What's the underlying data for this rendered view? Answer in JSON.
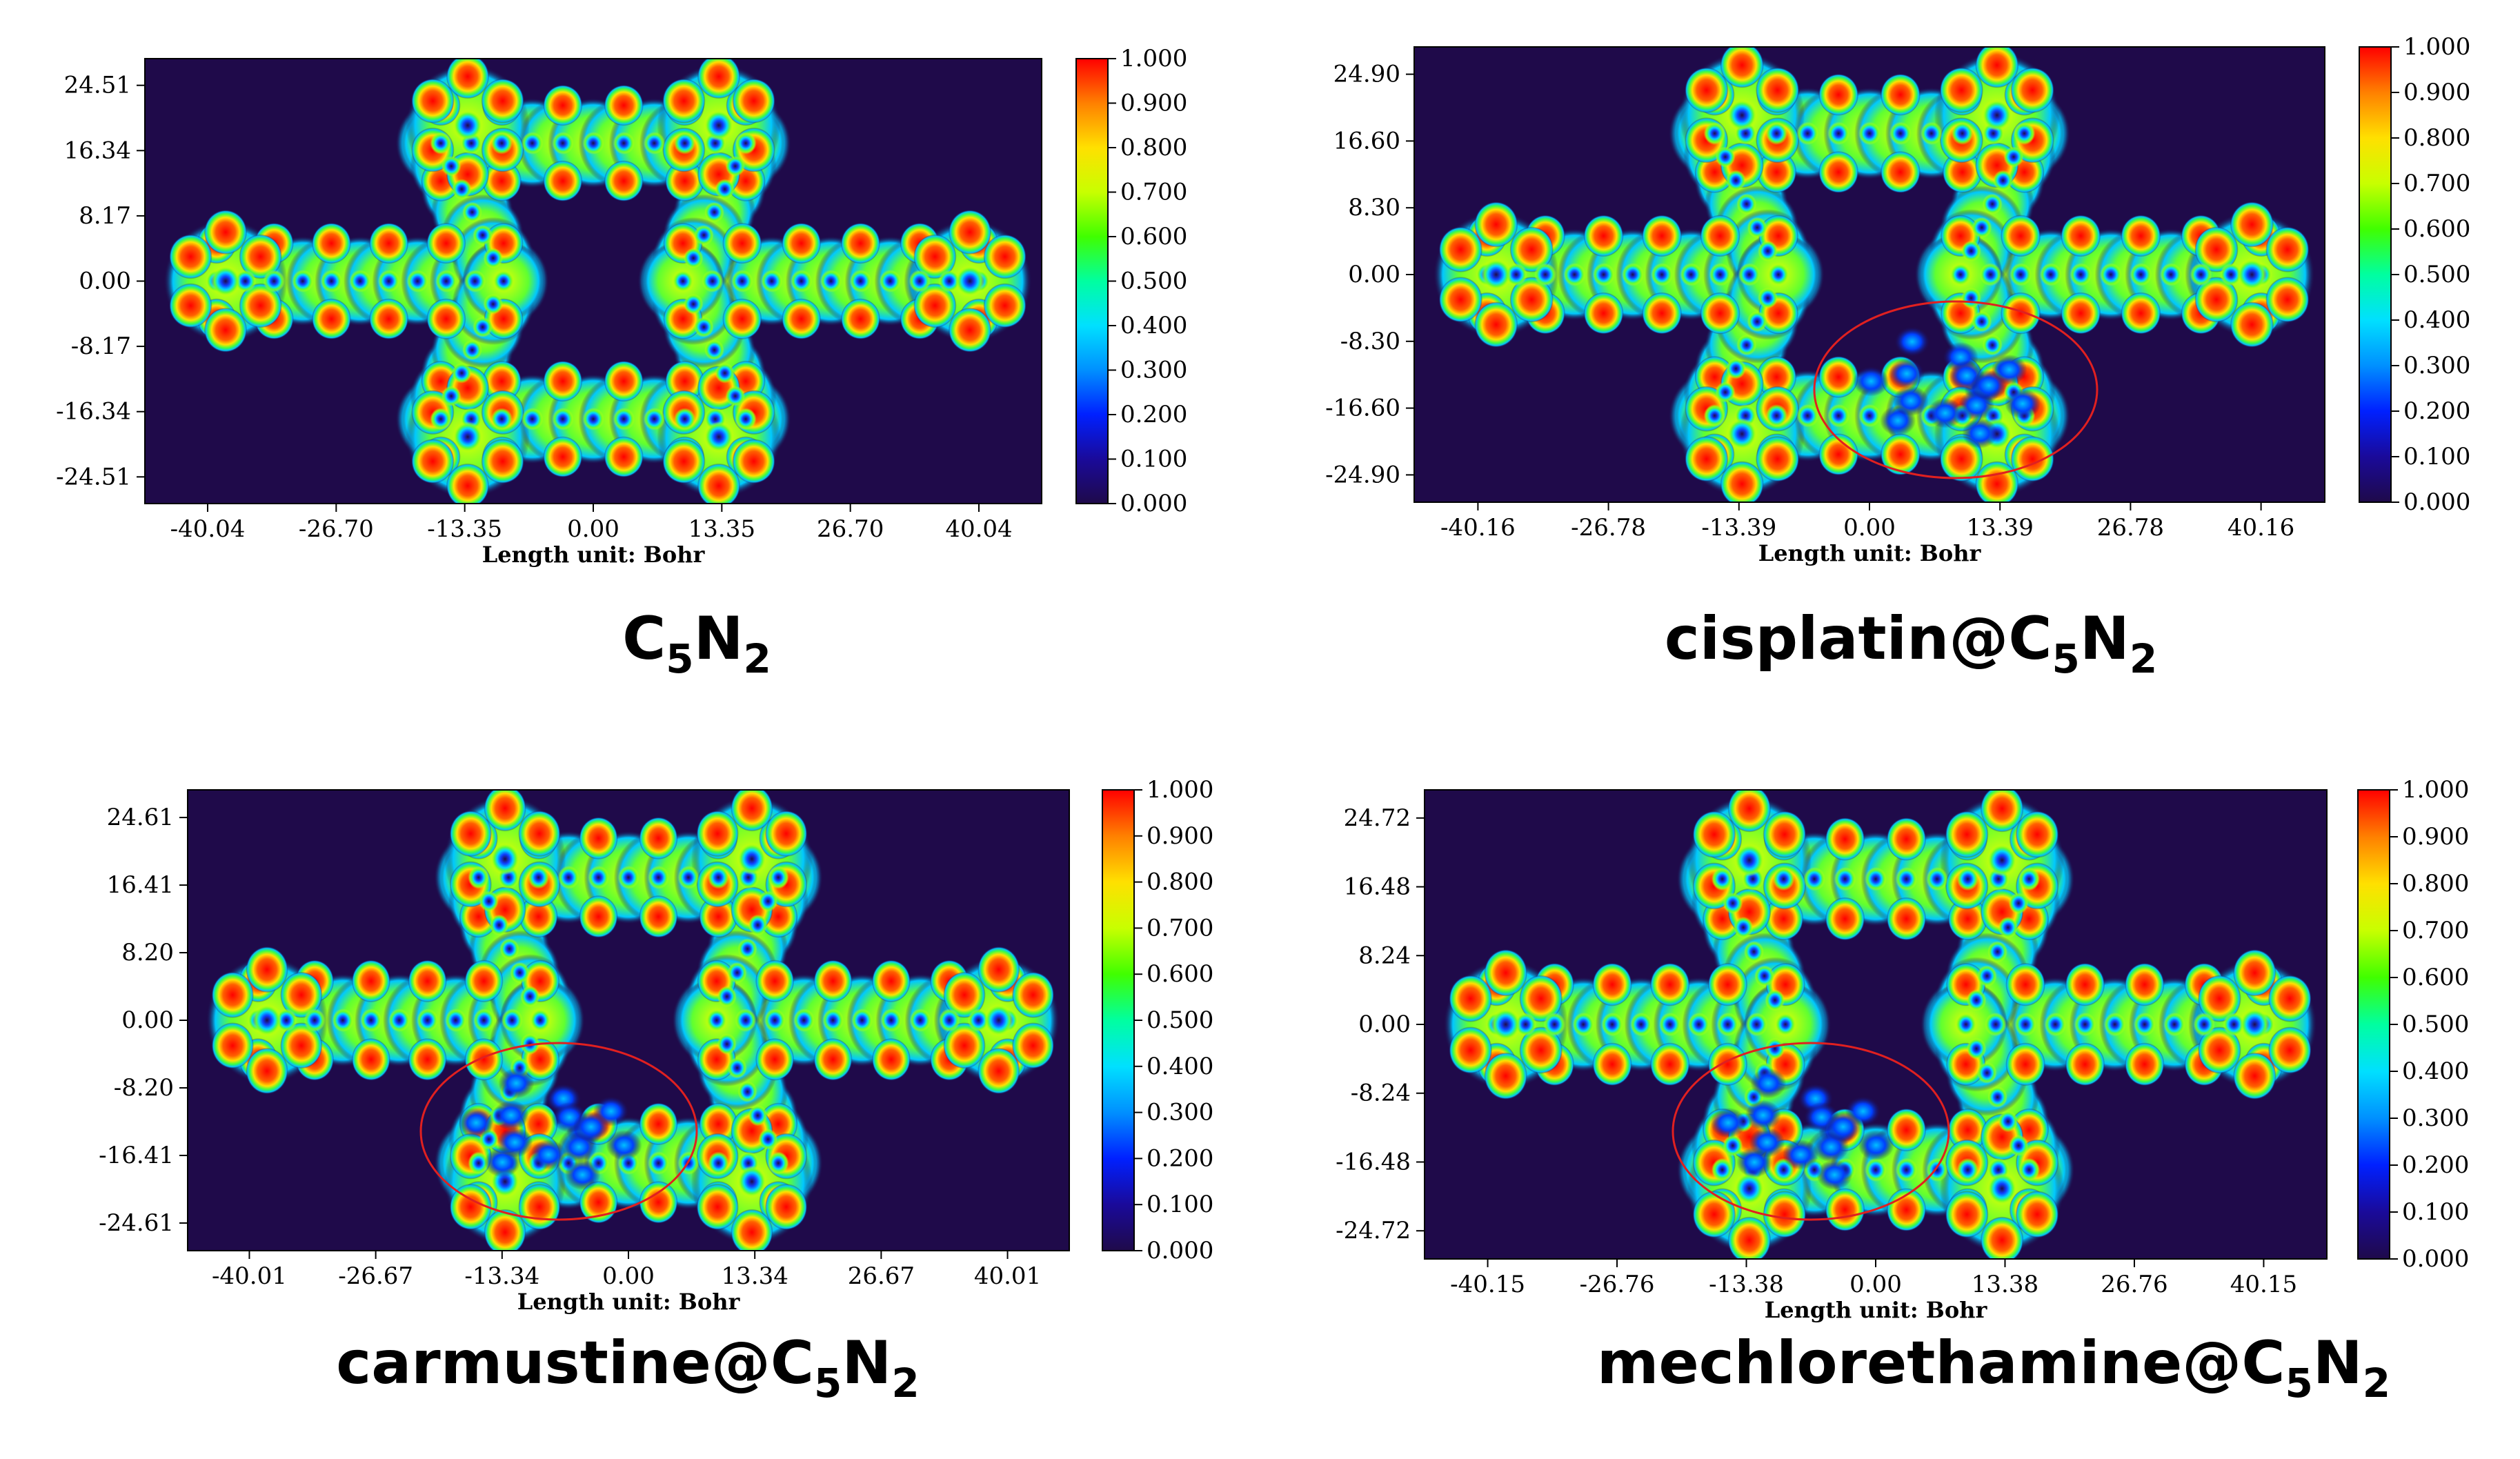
{
  "colors": {
    "background": "#1f0a4a",
    "colormap": [
      "#1f0a4a",
      "#0000ff",
      "#00c8ff",
      "#00ff7f",
      "#c8ff00",
      "#ffff00",
      "#ff9000",
      "#ff0000"
    ],
    "highlight_ellipse": "#e02020"
  },
  "chart_data": [
    {
      "type": "heatmap",
      "caption": {
        "prefix": "",
        "main": "C",
        "sub1": "5",
        "mid": "N",
        "sub2": "2"
      },
      "xticks": [
        "-40.04",
        "-26.70",
        "-13.35",
        "0.00",
        "13.35",
        "26.70",
        "40.04"
      ],
      "yticks": [
        "24.51",
        "16.34",
        "8.17",
        "0.00",
        "-8.17",
        "-16.34",
        "-24.51"
      ],
      "xlabel": "Length unit: Bohr",
      "colorbar_ticks": [
        "1.000",
        "0.900",
        "0.800",
        "0.700",
        "0.600",
        "0.500",
        "0.400",
        "0.300",
        "0.200",
        "0.100",
        "0.000"
      ],
      "colorbar_range": [
        0,
        1
      ],
      "highlight": "none"
    },
    {
      "type": "heatmap",
      "caption": {
        "prefix": "cisplatin@",
        "main": "C",
        "sub1": "5",
        "mid": "N",
        "sub2": "2"
      },
      "xticks": [
        "-40.16",
        "-26.78",
        "-13.39",
        "0.00",
        "13.39",
        "26.78",
        "40.16"
      ],
      "yticks": [
        "24.90",
        "16.60",
        "8.30",
        "0.00",
        "-8.30",
        "-16.60",
        "-24.90"
      ],
      "xlabel": "Length unit: Bohr",
      "colorbar_ticks": [
        "1.000",
        "0.900",
        "0.800",
        "0.700",
        "0.600",
        "0.500",
        "0.400",
        "0.300",
        "0.200",
        "0.100",
        "0.000"
      ],
      "colorbar_range": [
        0,
        1
      ],
      "highlight": "drug region circled (lower center-right)"
    },
    {
      "type": "heatmap",
      "caption": {
        "prefix": "carmustine@",
        "main": "C",
        "sub1": "5",
        "mid": "N",
        "sub2": "2"
      },
      "xticks": [
        "-40.01",
        "-26.67",
        "-13.34",
        "0.00",
        "13.34",
        "26.67",
        "40.01"
      ],
      "yticks": [
        "24.61",
        "16.41",
        "8.20",
        "0.00",
        "-8.20",
        "-16.41",
        "-24.61"
      ],
      "xlabel": "Length unit: Bohr",
      "colorbar_ticks": [
        "1.000",
        "0.900",
        "0.800",
        "0.700",
        "0.600",
        "0.500",
        "0.400",
        "0.300",
        "0.200",
        "0.100",
        "0.000"
      ],
      "colorbar_range": [
        0,
        1
      ],
      "highlight": "drug region circled (lower center-left)"
    },
    {
      "type": "heatmap",
      "caption": {
        "prefix": "mechlorethamine@",
        "main": "C",
        "sub1": "5",
        "mid": "N",
        "sub2": "2"
      },
      "xticks": [
        "-40.15",
        "-26.76",
        "-13.38",
        "0.00",
        "13.38",
        "26.76",
        "40.15"
      ],
      "yticks": [
        "24.72",
        "16.48",
        "8.24",
        "0.00",
        "-8.24",
        "-16.48",
        "-24.72"
      ],
      "xlabel": "Length unit: Bohr",
      "colorbar_ticks": [
        "1.000",
        "0.900",
        "0.800",
        "0.700",
        "0.600",
        "0.500",
        "0.400",
        "0.300",
        "0.200",
        "0.100",
        "0.000"
      ],
      "colorbar_range": [
        0,
        1
      ],
      "highlight": "drug region circled (lower center-left)"
    }
  ]
}
